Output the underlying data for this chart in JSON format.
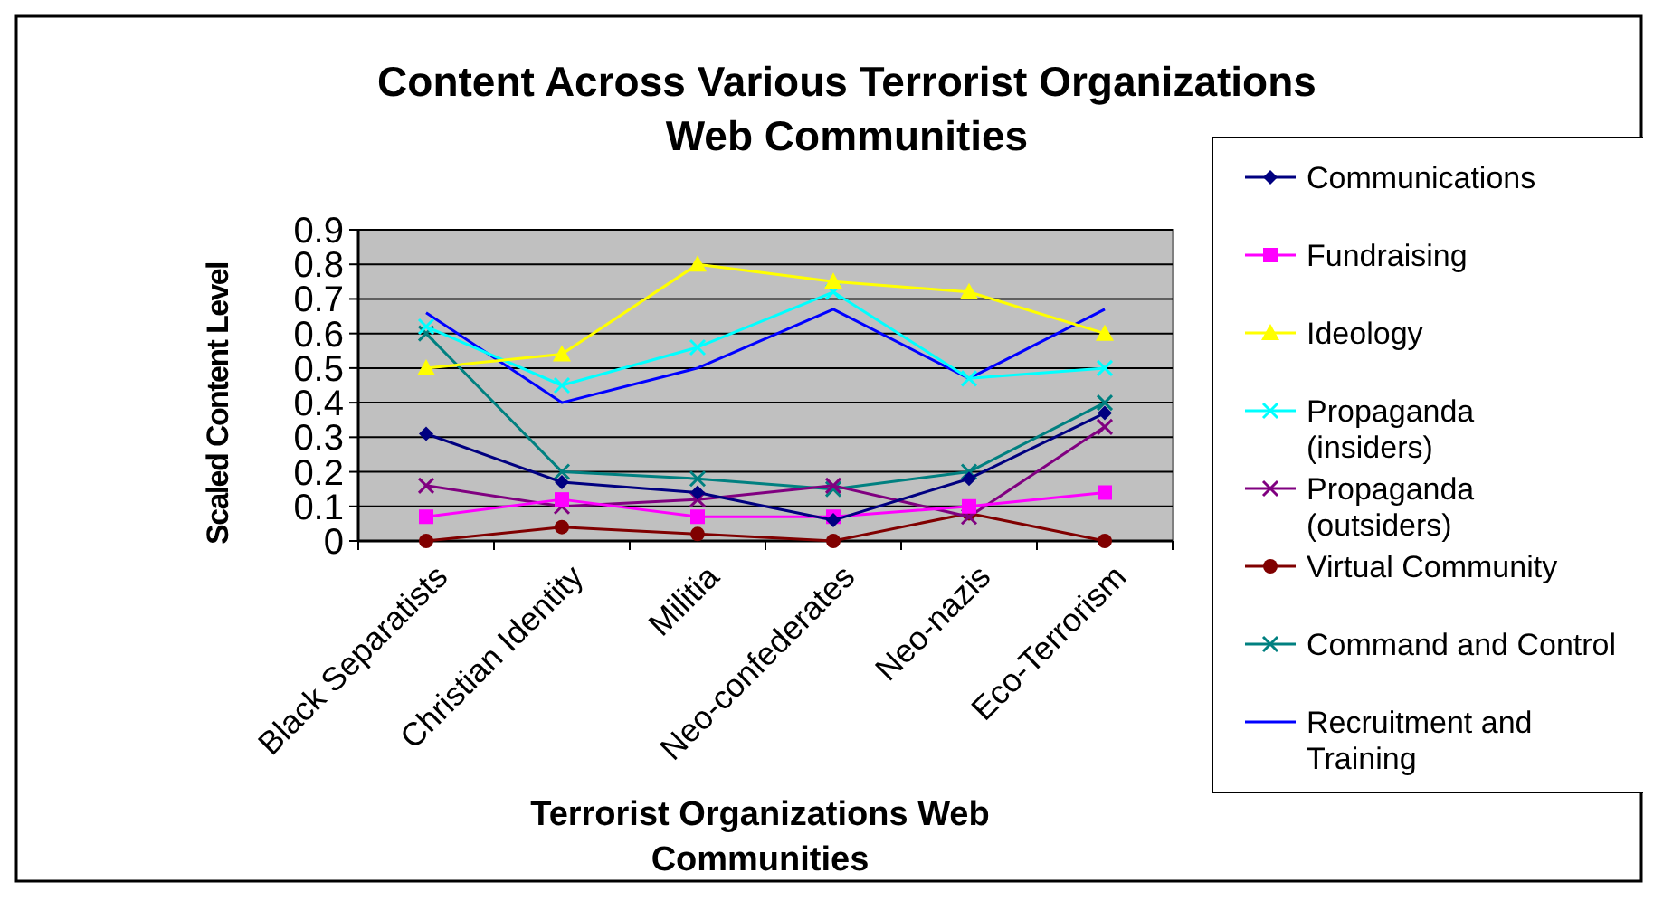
{
  "chart_data": {
    "type": "line",
    "title": "Content Across Various Terrorist Organizations Web Communities",
    "xlabel": "Terrorist Organizations Web Communities",
    "ylabel": "Scaled Content Level",
    "categories": [
      "Black Separatists",
      "Christian Identity",
      "Militia",
      "Neo-confederates",
      "Neo-nazis",
      "Eco-Terrorism"
    ],
    "ylim": [
      0,
      0.9
    ],
    "yticks": [
      0,
      0.1,
      0.2,
      0.3,
      0.4,
      0.5,
      0.6,
      0.7,
      0.8,
      0.9
    ],
    "grid": "y",
    "legend": "right",
    "series": [
      {
        "name": "Communications",
        "color": "#000080",
        "marker": "diamond",
        "values": [
          0.31,
          0.17,
          0.14,
          0.06,
          0.18,
          0.37
        ]
      },
      {
        "name": "Fundraising",
        "color": "#ff00ff",
        "marker": "square",
        "values": [
          0.07,
          0.12,
          0.07,
          0.07,
          0.1,
          0.14
        ]
      },
      {
        "name": "Ideology",
        "color": "#ffff00",
        "marker": "triangle",
        "values": [
          0.5,
          0.54,
          0.8,
          0.75,
          0.72,
          0.6
        ]
      },
      {
        "name": "Propaganda (insiders)",
        "color": "#00ffff",
        "marker": "cross",
        "values": [
          0.62,
          0.45,
          0.56,
          0.72,
          0.47,
          0.5
        ]
      },
      {
        "name": "Propaganda (outsiders)",
        "color": "#800080",
        "marker": "cross",
        "values": [
          0.16,
          0.1,
          0.12,
          0.16,
          0.07,
          0.33
        ]
      },
      {
        "name": "Virtual Community",
        "color": "#800000",
        "marker": "circle",
        "values": [
          0,
          0.04,
          0.02,
          0,
          0.08,
          0
        ]
      },
      {
        "name": "Command and Control",
        "color": "#008080",
        "marker": "cross",
        "values": [
          0.6,
          0.2,
          0.18,
          0.15,
          0.2,
          0.4
        ]
      },
      {
        "name": "Recruitment and Training",
        "color": "#0000ff",
        "marker": "none",
        "values": [
          0.66,
          0.4,
          0.5,
          0.67,
          0.47,
          0.67
        ]
      }
    ]
  }
}
